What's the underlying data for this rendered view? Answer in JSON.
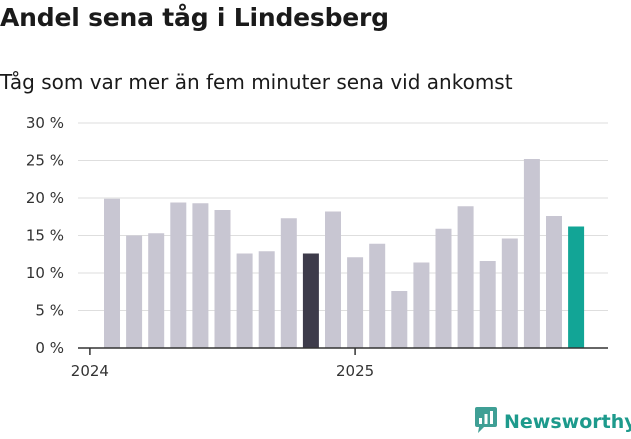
{
  "title": "Andel sena tåg i Lindesberg",
  "subtitle": "Tåg som var mer än fem minuter sena vid ankomst",
  "brand": "Newsworthy",
  "colors": {
    "bar": "#c8c6d2",
    "highlight_dark": "#3d3b4a",
    "highlight_latest": "#12a596",
    "grid": "#dedede",
    "axis": "#333333",
    "brand": "#1d9a8c"
  },
  "chart_data": {
    "type": "bar",
    "title": "Andel sena tåg i Lindesberg",
    "subtitle": "Tåg som var mer än fem minuter sena vid ankomst",
    "xlabel": "",
    "ylabel": "",
    "ylim": [
      0,
      30
    ],
    "yticks": [
      0,
      5,
      10,
      15,
      20,
      25,
      30
    ],
    "ytick_labels": [
      "0 %",
      "5 %",
      "10 %",
      "15 %",
      "20 %",
      "25 %",
      "30 %"
    ],
    "xticks": [
      {
        "label": "2024",
        "index": 0
      },
      {
        "label": "2025",
        "index": 12
      }
    ],
    "grid": true,
    "values": [
      19.9,
      15.0,
      15.3,
      19.4,
      19.3,
      18.4,
      12.6,
      12.9,
      17.3,
      12.6,
      18.2,
      12.1,
      13.9,
      7.6,
      11.4,
      15.9,
      18.9,
      11.6,
      14.6,
      25.2,
      17.6,
      16.2
    ],
    "highlights": [
      {
        "index": 9,
        "role": "dark"
      },
      {
        "index": 21,
        "role": "latest"
      }
    ]
  }
}
